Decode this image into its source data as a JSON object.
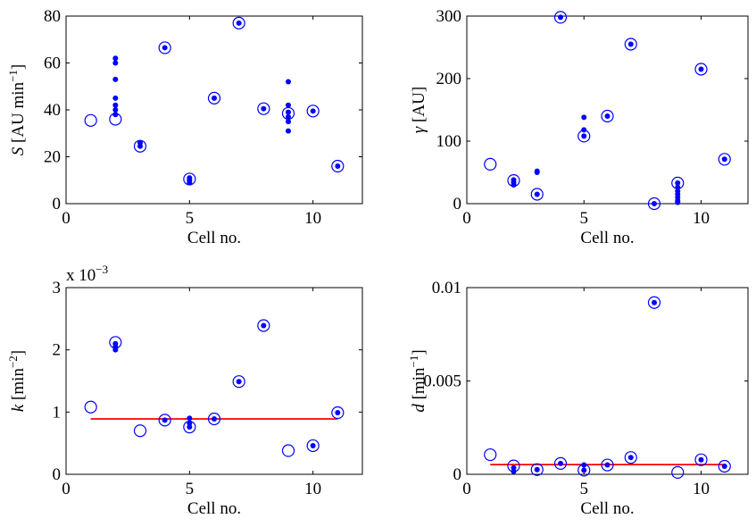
{
  "chart_data": [
    {
      "type": "scatter",
      "xlabel": "Cell no.",
      "ylabel_var": "S",
      "ylabel_unit": "[AU min",
      "ylabel_exp": "−1",
      "ylabel_close": "]",
      "xlim": [
        0,
        12
      ],
      "ylim": [
        0,
        80
      ],
      "xticks": [
        "0",
        "5",
        "10"
      ],
      "xtick_values": [
        0,
        5,
        10
      ],
      "yticks": [
        "0",
        "20",
        "40",
        "60",
        "80"
      ],
      "ytick_values": [
        0,
        20,
        40,
        60,
        80
      ],
      "ring_points": [
        [
          1,
          35.5
        ],
        [
          2,
          36
        ],
        [
          3,
          24.5
        ],
        [
          4,
          66.5
        ],
        [
          5,
          10.5
        ],
        [
          6,
          45
        ],
        [
          7,
          77
        ],
        [
          8,
          40.5
        ],
        [
          9,
          38.5
        ],
        [
          10,
          39.5
        ],
        [
          11,
          16
        ]
      ],
      "dot_points": [
        [
          2,
          62
        ],
        [
          2,
          60
        ],
        [
          2,
          53
        ],
        [
          2,
          45
        ],
        [
          2,
          42
        ],
        [
          2,
          40
        ],
        [
          2,
          38
        ],
        [
          3,
          26
        ],
        [
          3,
          24.5
        ],
        [
          4,
          66.5
        ],
        [
          5,
          11
        ],
        [
          5,
          10
        ],
        [
          5,
          9
        ],
        [
          6,
          45
        ],
        [
          7,
          77
        ],
        [
          8,
          40.5
        ],
        [
          9,
          52
        ],
        [
          9,
          42
        ],
        [
          9,
          39
        ],
        [
          9,
          37
        ],
        [
          9,
          35
        ],
        [
          9,
          31
        ],
        [
          10,
          39.5
        ],
        [
          11,
          16
        ]
      ],
      "ref_line": null
    },
    {
      "type": "scatter",
      "xlabel": "Cell no.",
      "ylabel_var": "γ",
      "ylabel_unit": "[AU]",
      "ylabel_exp": "",
      "ylabel_close": "",
      "xlim": [
        0,
        12
      ],
      "ylim": [
        0,
        300
      ],
      "xticks": [
        "0",
        "5",
        "10"
      ],
      "xtick_values": [
        0,
        5,
        10
      ],
      "yticks": [
        "0",
        "100",
        "200",
        "300"
      ],
      "ytick_values": [
        0,
        100,
        200,
        300
      ],
      "ring_points": [
        [
          1,
          63
        ],
        [
          2,
          37
        ],
        [
          3,
          15
        ],
        [
          4,
          298
        ],
        [
          5,
          108
        ],
        [
          6,
          140
        ],
        [
          7,
          255
        ],
        [
          8,
          0
        ],
        [
          9,
          33
        ],
        [
          10,
          215
        ],
        [
          11,
          71
        ]
      ],
      "dot_points": [
        [
          2,
          38
        ],
        [
          2,
          34
        ],
        [
          2,
          30
        ],
        [
          3,
          52
        ],
        [
          3,
          50
        ],
        [
          3,
          15
        ],
        [
          4,
          298
        ],
        [
          5,
          138
        ],
        [
          5,
          118
        ],
        [
          5,
          108
        ],
        [
          6,
          140
        ],
        [
          7,
          255
        ],
        [
          8,
          0
        ],
        [
          9,
          33
        ],
        [
          9,
          26
        ],
        [
          9,
          20
        ],
        [
          9,
          15
        ],
        [
          9,
          10
        ],
        [
          9,
          5
        ],
        [
          9,
          2
        ],
        [
          10,
          215
        ],
        [
          11,
          71
        ]
      ],
      "ref_line": null
    },
    {
      "type": "scatter",
      "xlabel": "Cell no.",
      "ylabel_var": "k",
      "ylabel_unit": "[min",
      "ylabel_exp": "−2",
      "ylabel_close": "]",
      "multiplier": "x 10",
      "multiplier_exp": "−3",
      "xlim": [
        0,
        12
      ],
      "ylim": [
        0,
        3
      ],
      "xticks": [
        "0",
        "5",
        "10"
      ],
      "xtick_values": [
        0,
        5,
        10
      ],
      "yticks": [
        "0",
        "1",
        "2",
        "3"
      ],
      "ytick_values": [
        0,
        1,
        2,
        3
      ],
      "ring_points": [
        [
          1,
          1.08
        ],
        [
          2,
          2.12
        ],
        [
          3,
          0.7
        ],
        [
          4,
          0.87
        ],
        [
          5,
          0.76
        ],
        [
          6,
          0.89
        ],
        [
          7,
          1.49
        ],
        [
          8,
          2.39
        ],
        [
          9,
          0.38
        ],
        [
          10,
          0.46
        ],
        [
          11,
          0.99
        ]
      ],
      "dot_points": [
        [
          2,
          2.1
        ],
        [
          2,
          2.05
        ],
        [
          2,
          2.0
        ],
        [
          4,
          0.87
        ],
        [
          5,
          0.9
        ],
        [
          5,
          0.82
        ],
        [
          5,
          0.76
        ],
        [
          6,
          0.89
        ],
        [
          7,
          1.49
        ],
        [
          8,
          2.39
        ],
        [
          10,
          0.46
        ],
        [
          11,
          0.99
        ]
      ],
      "ref_line": {
        "x": [
          1,
          11
        ],
        "y": [
          0.89,
          0.89
        ],
        "color": "#ff0000"
      }
    },
    {
      "type": "scatter",
      "xlabel": "Cell no.",
      "ylabel_var": "d",
      "ylabel_unit": "[min",
      "ylabel_exp": "−1",
      "ylabel_close": "]",
      "xlim": [
        0,
        12
      ],
      "ylim": [
        0,
        0.01
      ],
      "xticks": [
        "0",
        "5",
        "10"
      ],
      "xtick_values": [
        0,
        5,
        10
      ],
      "yticks": [
        "0",
        "0.005",
        "0.01"
      ],
      "ytick_values": [
        0,
        0.005,
        0.01
      ],
      "ring_points": [
        [
          1,
          0.00105
        ],
        [
          2,
          0.00045
        ],
        [
          3,
          0.00025
        ],
        [
          4,
          0.00058
        ],
        [
          5,
          0.00022
        ],
        [
          6,
          0.0005
        ],
        [
          7,
          0.0009
        ],
        [
          8,
          0.0092
        ],
        [
          9,
          0.0001
        ],
        [
          10,
          0.00078
        ],
        [
          11,
          0.00043
        ]
      ],
      "dot_points": [
        [
          2,
          0.00035
        ],
        [
          2,
          0.00015
        ],
        [
          3,
          0.00025
        ],
        [
          4,
          0.00058
        ],
        [
          5,
          0.0005
        ],
        [
          5,
          0.00022
        ],
        [
          6,
          0.0005
        ],
        [
          7,
          0.0009
        ],
        [
          8,
          0.0092
        ],
        [
          10,
          0.00078
        ],
        [
          11,
          0.00043
        ]
      ],
      "ref_line": {
        "x": [
          1,
          11
        ],
        "y": [
          0.00052,
          0.00052
        ],
        "color": "#ff0000"
      }
    }
  ],
  "colors": {
    "marker": "#0000ff",
    "ref_line": "#ff0000",
    "axis": "#000000"
  }
}
